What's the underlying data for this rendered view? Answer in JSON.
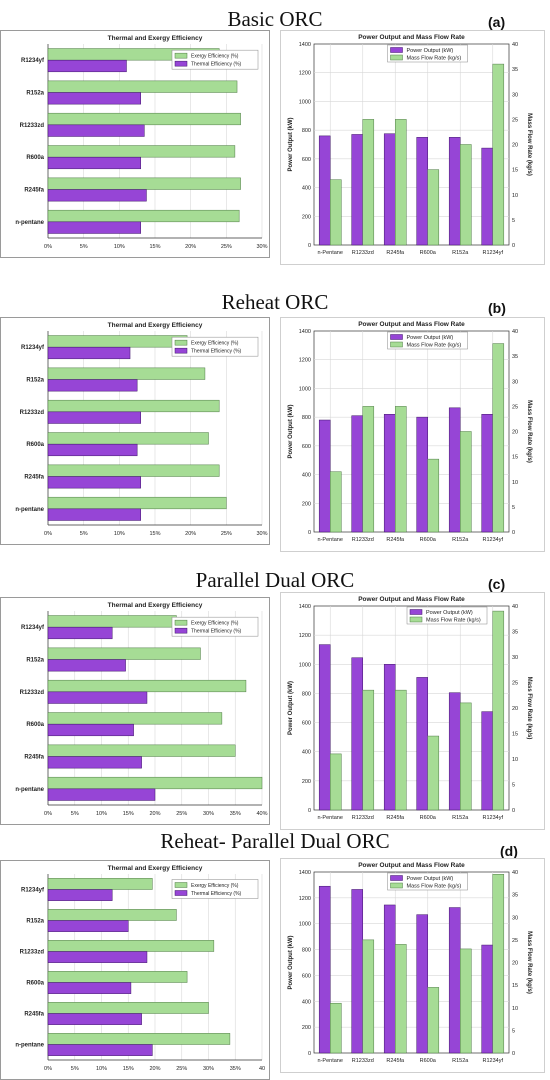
{
  "chart_data": [
    {
      "type": "bar",
      "section_title": "Basic ORC",
      "section_letter": "(a)",
      "title": "Thermal and Exergy Efficiency",
      "orientation": "horizontal",
      "categories": [
        "R1234yf",
        "R152a",
        "R1233zd",
        "R600a",
        "R245fa",
        "n-pentane"
      ],
      "series": [
        {
          "name": "Exergy Efficiency (%)",
          "values": [
            24,
            26.5,
            27,
            26.2,
            27,
            26.8
          ]
        },
        {
          "name": "Thermal Efficiency (%)",
          "values": [
            11,
            13,
            13.5,
            13,
            13.8,
            13
          ]
        }
      ],
      "xlim": [
        0,
        30
      ],
      "xticks": [
        "0%",
        "5%",
        "10%",
        "15%",
        "20%",
        "25%",
        "30%"
      ],
      "legend": "top-right",
      "grid": true
    },
    {
      "type": "bar",
      "title": "Power Output and Mass Flow Rate",
      "categories": [
        "n-Pentane",
        "R1233zd",
        "R245fa",
        "R600a",
        "R152a",
        "R1234yf"
      ],
      "series": [
        {
          "name": "Power Output (kW)",
          "values": [
            760,
            770,
            775,
            750,
            750,
            675
          ],
          "axis": "left"
        },
        {
          "name": "Mass Flow Rate (kg/s)",
          "values": [
            13,
            25,
            25,
            15,
            20,
            36
          ],
          "axis": "right"
        }
      ],
      "ylabel": "Power Output (kW)",
      "y2label": "Mass Flow Rate (kg/s)",
      "ylim": [
        0,
        1400
      ],
      "y2lim": [
        0,
        40
      ],
      "yticks": [
        "0",
        "200",
        "400",
        "600",
        "800",
        "1000",
        "1200",
        "1400"
      ],
      "y2ticks": [
        "0",
        "5",
        "10",
        "15",
        "20",
        "25",
        "30",
        "35",
        "40"
      ],
      "legend": "top-center",
      "grid": true
    },
    {
      "type": "bar",
      "section_title": "Reheat ORC",
      "section_letter": "(b)",
      "title": "Thermal and Exergy Efficiency",
      "orientation": "horizontal",
      "categories": [
        "R1234yf",
        "R152a",
        "R1233zd",
        "R600a",
        "R245fa",
        "n-pentane"
      ],
      "series": [
        {
          "name": "Exergy Efficiency (%)",
          "values": [
            19.5,
            22,
            24,
            22.5,
            24,
            25
          ]
        },
        {
          "name": "Thermal Efficiency (%)",
          "values": [
            11.5,
            12.5,
            13,
            12.5,
            13,
            13
          ]
        }
      ],
      "xlim": [
        0,
        30
      ],
      "xticks": [
        "0%",
        "5%",
        "10%",
        "15%",
        "20%",
        "25%",
        "30%"
      ],
      "legend": "top-right",
      "grid": true
    },
    {
      "type": "bar",
      "title": "Power Output and Mass Flow Rate",
      "categories": [
        "n-Pentane",
        "R1233zd",
        "R245fa",
        "R600a",
        "R152a",
        "R1234yf"
      ],
      "series": [
        {
          "name": "Power Output (kW)",
          "values": [
            780,
            810,
            820,
            800,
            865,
            820
          ],
          "axis": "left"
        },
        {
          "name": "Mass Flow Rate (kg/s)",
          "values": [
            12,
            25,
            25,
            14.5,
            20,
            37.5
          ],
          "axis": "right"
        }
      ],
      "ylabel": "Power Output (kW)",
      "y2label": "Mass Flow Rate (kg/s)",
      "ylim": [
        0,
        1400
      ],
      "y2lim": [
        0,
        40
      ],
      "yticks": [
        "0",
        "200",
        "400",
        "600",
        "800",
        "1000",
        "1200",
        "1400"
      ],
      "y2ticks": [
        "0",
        "5",
        "10",
        "15",
        "20",
        "25",
        "30",
        "35",
        "40"
      ],
      "legend": "top-center",
      "grid": true
    },
    {
      "type": "bar",
      "section_title": "Parallel Dual ORC",
      "section_letter": "(c)",
      "title": "Thermal and Exergy Efficiency",
      "orientation": "horizontal",
      "categories": [
        "R1234yf",
        "R152a",
        "R1233zd",
        "R600a",
        "R245fa",
        "n-pentane"
      ],
      "series": [
        {
          "name": "Exergy Efficiency (%)",
          "values": [
            24,
            28.5,
            37,
            32.5,
            35,
            40
          ]
        },
        {
          "name": "Thermal Efficiency (%)",
          "values": [
            12,
            14.5,
            18.5,
            16,
            17.5,
            20
          ]
        }
      ],
      "xlim": [
        0,
        40
      ],
      "xticks": [
        "0%",
        "5%",
        "10%",
        "15%",
        "20%",
        "25%",
        "30%",
        "35%",
        "40%"
      ],
      "legend": "top-right",
      "grid": true
    },
    {
      "type": "bar",
      "title": "Power Output and Mass Flow Rate",
      "categories": [
        "n-Pentane",
        "R1233zd",
        "R245fa",
        "R600a",
        "R152a",
        "R1234yf"
      ],
      "series": [
        {
          "name": "Power Output (kW)",
          "values": [
            1135,
            1045,
            1000,
            910,
            805,
            675
          ],
          "axis": "left"
        },
        {
          "name": "Mass Flow Rate (kg/s)",
          "values": [
            11,
            23.5,
            23.5,
            14.5,
            21,
            39
          ],
          "axis": "right"
        }
      ],
      "ylabel": "Power Output (kW)",
      "y2label": "Mass Flow Rate (kg/s)",
      "ylim": [
        0,
        1400
      ],
      "y2lim": [
        0,
        40
      ],
      "yticks": [
        "0",
        "200",
        "400",
        "600",
        "800",
        "1000",
        "1200",
        "1400"
      ],
      "y2ticks": [
        "0",
        "5",
        "10",
        "15",
        "20",
        "25",
        "30",
        "35",
        "40"
      ],
      "legend": "top-right",
      "grid": true
    },
    {
      "type": "bar",
      "section_title": "Reheat- Parallel Dual ORC",
      "section_letter": "(d)",
      "title": "Thermal and Exergy Efficiency",
      "orientation": "horizontal",
      "categories": [
        "R1234yf",
        "R152a",
        "R1233zd",
        "R600a",
        "R245fa",
        "n-pentane"
      ],
      "series": [
        {
          "name": "Exergy Efficiency (%)",
          "values": [
            19.5,
            24,
            31,
            26,
            30,
            34
          ]
        },
        {
          "name": "Thermal Efficiency (%)",
          "values": [
            12,
            15,
            18.5,
            15.5,
            17.5,
            19.5
          ]
        }
      ],
      "xlim": [
        0,
        40
      ],
      "xticks": [
        "0%",
        "5%",
        "10%",
        "15%",
        "20%",
        "25%",
        "30%",
        "35%",
        "40"
      ],
      "legend": "top-right",
      "grid": true
    },
    {
      "type": "bar",
      "title": "Power Output and Mass Flow Rate",
      "categories": [
        "n-Pentane",
        "R1233zd",
        "R245fa",
        "R600a",
        "R152a",
        "R1234yf"
      ],
      "series": [
        {
          "name": "Power Output (kW)",
          "values": [
            1290,
            1265,
            1145,
            1070,
            1125,
            835
          ],
          "axis": "left"
        },
        {
          "name": "Mass Flow Rate (kg/s)",
          "values": [
            11,
            25,
            24,
            14.5,
            23,
            39.5
          ],
          "axis": "right"
        }
      ],
      "ylabel": "Power Output (kW)",
      "y2label": "Mass Flow Rate (kg/s)",
      "ylim": [
        0,
        1400
      ],
      "y2lim": [
        0,
        40
      ],
      "yticks": [
        "0",
        "200",
        "400",
        "600",
        "800",
        "1000",
        "1200",
        "1400"
      ],
      "y2ticks": [
        "0",
        "5",
        "10",
        "15",
        "20",
        "25",
        "30",
        "35",
        "40"
      ],
      "legend": "top-center",
      "grid": true
    }
  ],
  "colors": {
    "green": "#a6dc95",
    "green_stroke": "#4e7a45",
    "purple": "#9645d6",
    "purple_stroke": "#3d1566",
    "grid": "#d8d8d8",
    "axis": "#333333"
  }
}
